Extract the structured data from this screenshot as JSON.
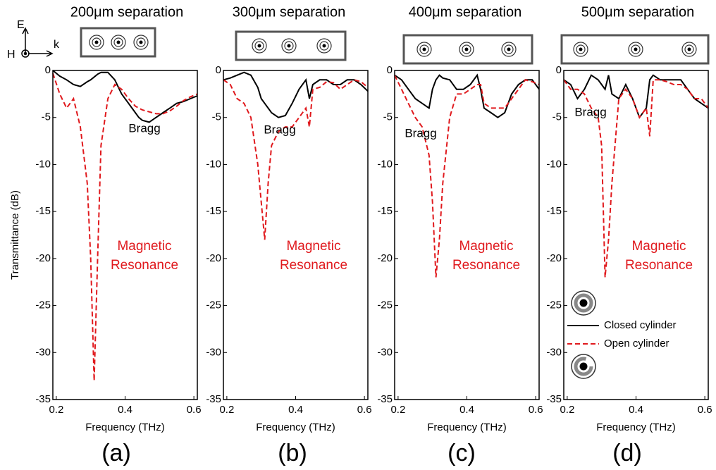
{
  "axes_symbols": {
    "E": "E",
    "H": "H",
    "k": "k"
  },
  "chart_data": [
    {
      "type": "line",
      "title": "200μm separation",
      "panel_label": "(a)",
      "x_label": "Frequency (THz)",
      "y_label": "Transmittance (dB)",
      "xlim": [
        0.19,
        0.61
      ],
      "ylim": [
        -35,
        0
      ],
      "xticks": [
        0.2,
        0.4,
        0.6
      ],
      "yticks": [
        0,
        -5,
        -10,
        -15,
        -20,
        -25,
        -30,
        -35
      ],
      "annotations": {
        "bragg": "Bragg",
        "resonance": [
          "Magnetic",
          "Resonance"
        ]
      },
      "x": [
        0.19,
        0.21,
        0.23,
        0.25,
        0.27,
        0.29,
        0.3,
        0.31,
        0.32,
        0.33,
        0.35,
        0.37,
        0.39,
        0.41,
        0.43,
        0.44,
        0.45,
        0.47,
        0.49,
        0.51,
        0.53,
        0.55,
        0.57,
        0.59,
        0.61
      ],
      "series": [
        {
          "name": "Closed cylinder",
          "color": "#000000",
          "values": [
            0,
            -0.6,
            -1,
            -1.5,
            -1.7,
            -1.2,
            -1,
            -0.7,
            -0.4,
            -0.2,
            -0.2,
            -1,
            -2.5,
            -3.5,
            -4.5,
            -5,
            -5.3,
            -5.5,
            -5,
            -4.5,
            -4,
            -3.5,
            -3.3,
            -3,
            -2.7
          ]
        },
        {
          "name": "Open cylinder",
          "color": "#e0191d",
          "values": [
            -0.3,
            -2.5,
            -4,
            -3,
            -6,
            -12,
            -20,
            -33,
            -20,
            -8,
            -3,
            -1.5,
            -2,
            -3,
            -3.8,
            -4,
            -4.2,
            -4.4,
            -4.6,
            -4.6,
            -4.3,
            -3.8,
            -3.2,
            -2.8,
            -2.5
          ]
        }
      ]
    },
    {
      "type": "line",
      "title": "300μm separation",
      "panel_label": "(b)",
      "x_label": "Frequency (THz)",
      "xlim": [
        0.19,
        0.61
      ],
      "ylim": [
        -35,
        0
      ],
      "xticks": [
        0.2,
        0.4,
        0.6
      ],
      "yticks": [
        0,
        -5,
        -10,
        -15,
        -20,
        -25,
        -30,
        -35
      ],
      "annotations": {
        "bragg": "Bragg",
        "resonance": [
          "Magnetic",
          "Resonance"
        ]
      },
      "x": [
        0.19,
        0.21,
        0.23,
        0.25,
        0.27,
        0.29,
        0.3,
        0.31,
        0.32,
        0.33,
        0.35,
        0.37,
        0.39,
        0.41,
        0.43,
        0.44,
        0.45,
        0.47,
        0.49,
        0.51,
        0.53,
        0.55,
        0.57,
        0.59,
        0.61
      ],
      "series": [
        {
          "name": "Closed cylinder",
          "color": "#000000",
          "values": [
            -1,
            -0.8,
            -0.5,
            -0.2,
            -0.5,
            -1.8,
            -3,
            -3.5,
            -4,
            -4.5,
            -5,
            -4.8,
            -3.5,
            -2,
            -1,
            -3,
            -1.5,
            -1,
            -1,
            -1.5,
            -1.5,
            -1,
            -1,
            -1.5,
            -2.2
          ]
        },
        {
          "name": "Open cylinder",
          "color": "#e0191d",
          "values": [
            -1,
            -1.5,
            -3,
            -3.5,
            -5,
            -10,
            -14,
            -18,
            -12,
            -8,
            -6.5,
            -6,
            -6,
            -5,
            -4,
            -6,
            -2,
            -1.8,
            -1.2,
            -1.3,
            -2,
            -1.5,
            -1,
            -1.2,
            -1.8
          ]
        }
      ]
    },
    {
      "type": "line",
      "title": "400μm separation",
      "panel_label": "(c)",
      "x_label": "Frequency (THz)",
      "xlim": [
        0.19,
        0.61
      ],
      "ylim": [
        -35,
        0
      ],
      "xticks": [
        0.2,
        0.4,
        0.6
      ],
      "yticks": [
        0,
        -5,
        -10,
        -15,
        -20,
        -25,
        -30,
        -35
      ],
      "annotations": {
        "bragg": "Bragg",
        "resonance": [
          "Magnetic",
          "Resonance"
        ]
      },
      "x": [
        0.19,
        0.21,
        0.23,
        0.25,
        0.27,
        0.29,
        0.3,
        0.31,
        0.32,
        0.33,
        0.35,
        0.37,
        0.39,
        0.41,
        0.43,
        0.44,
        0.45,
        0.47,
        0.49,
        0.51,
        0.53,
        0.55,
        0.57,
        0.59,
        0.61
      ],
      "series": [
        {
          "name": "Closed cylinder",
          "color": "#000000",
          "values": [
            -0.5,
            -1,
            -2,
            -3,
            -3.5,
            -4,
            -2,
            -1,
            -0.5,
            -0.8,
            -1,
            -2,
            -2,
            -1.5,
            -0.5,
            -2,
            -4,
            -4.5,
            -5,
            -4.5,
            -2.5,
            -1.5,
            -1,
            -1,
            -2
          ]
        },
        {
          "name": "Open cylinder",
          "color": "#e0191d",
          "values": [
            -0.5,
            -2,
            -3.5,
            -5,
            -6,
            -9,
            -14,
            -22,
            -18,
            -12,
            -5,
            -2.5,
            -2.5,
            -2,
            -1.5,
            -1.5,
            -3.5,
            -4,
            -4,
            -4,
            -3,
            -2,
            -1,
            -1.2,
            -1.5
          ]
        }
      ]
    },
    {
      "type": "line",
      "title": "500μm separation",
      "panel_label": "(d)",
      "x_label": "Frequency (THz)",
      "xlim": [
        0.19,
        0.61
      ],
      "ylim": [
        -35,
        0
      ],
      "xticks": [
        0.2,
        0.4,
        0.6
      ],
      "yticks": [
        0,
        -5,
        -10,
        -15,
        -20,
        -25,
        -30,
        -35
      ],
      "annotations": {
        "bragg": "Bragg",
        "resonance": [
          "Magnetic",
          "Resonance"
        ]
      },
      "legend": "lower left",
      "x": [
        0.19,
        0.21,
        0.23,
        0.25,
        0.27,
        0.29,
        0.3,
        0.31,
        0.32,
        0.33,
        0.35,
        0.37,
        0.39,
        0.41,
        0.43,
        0.44,
        0.45,
        0.47,
        0.49,
        0.51,
        0.53,
        0.55,
        0.57,
        0.59,
        0.61
      ],
      "series": [
        {
          "name": "Closed cylinder",
          "color": "#000000",
          "values": [
            -1,
            -1.5,
            -3,
            -2,
            -0.5,
            -1,
            -1.5,
            -2,
            -0.5,
            -2.5,
            -3,
            -1.5,
            -3,
            -5,
            -4,
            -1,
            -0.5,
            -1,
            -1,
            -1,
            -1,
            -2,
            -3,
            -3.5,
            -4
          ]
        },
        {
          "name": "Open cylinder",
          "color": "#e0191d",
          "values": [
            -1,
            -2,
            -2,
            -2.5,
            -4,
            -5,
            -8,
            -22,
            -18,
            -12,
            -3,
            -2,
            -3,
            -5,
            -4,
            -7,
            -1,
            -1,
            -1.2,
            -1.5,
            -1.5,
            -2,
            -3,
            -3,
            -4
          ]
        }
      ]
    }
  ]
}
